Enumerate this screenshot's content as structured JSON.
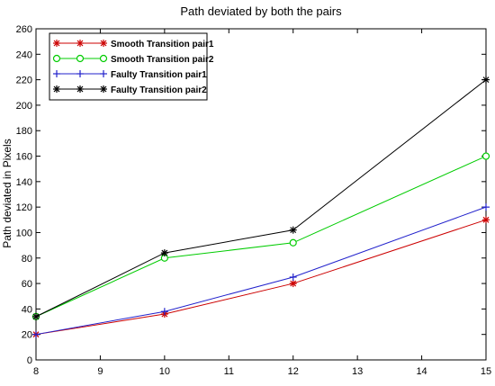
{
  "chart_data": {
    "type": "line",
    "title": "Path deviated by both the pairs",
    "xlabel": "",
    "ylabel": "Path deviated in Pixels",
    "x": [
      8,
      10,
      12,
      15
    ],
    "xlim": [
      8,
      15
    ],
    "ylim": [
      0,
      260
    ],
    "xticks": [
      "8",
      "9",
      "10",
      "11",
      "12",
      "13",
      "14",
      "15"
    ],
    "yticks": [
      "0",
      "20",
      "40",
      "60",
      "80",
      "100",
      "120",
      "140",
      "160",
      "180",
      "200",
      "220",
      "240",
      "260"
    ],
    "grid": false,
    "legend_position": "top-left",
    "series": [
      {
        "name": "Smooth Transition pair1",
        "values": [
          20,
          36,
          60,
          110
        ],
        "color": "#cc0000",
        "marker": "star"
      },
      {
        "name": "Smooth Transition pair2",
        "values": [
          34,
          80,
          92,
          160
        ],
        "color": "#00cc00",
        "marker": "circle"
      },
      {
        "name": "Faulty Transition pair1",
        "values": [
          20,
          38,
          65,
          120
        ],
        "color": "#2222cc",
        "marker": "plus"
      },
      {
        "name": "Faulty Transition pair2",
        "values": [
          34,
          84,
          102,
          220
        ],
        "color": "#000000",
        "marker": "star"
      }
    ]
  }
}
